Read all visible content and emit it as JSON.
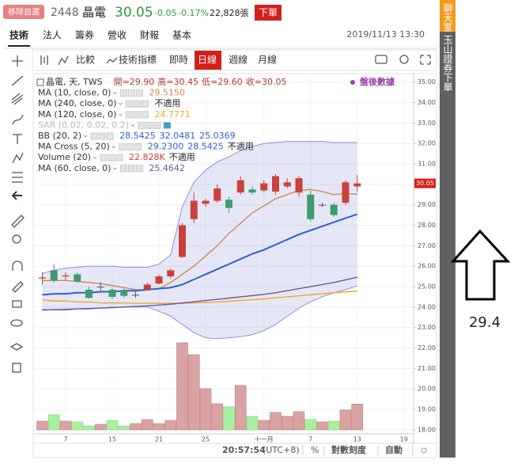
{
  "header": {
    "button": "移除自選",
    "code": "2448",
    "name": "晶電",
    "price": "30.05",
    "change": "-0.05",
    "pct": "-0.17%",
    "volume": "22,828張",
    "order": "下單"
  },
  "tabs": [
    "技術",
    "法人",
    "籌券",
    "營收",
    "財報",
    "基本"
  ],
  "datetime": "2019/11/13 13:30",
  "toolbar": {
    "items": [
      "比較",
      "技術指標",
      "即時",
      "日線",
      "週線",
      "月線"
    ],
    "active": 3
  },
  "side_tabs": [
    "聊天室",
    "玉山證券下單"
  ],
  "status": {
    "time": "20:57:54",
    "tz": "(UTC+8)",
    "pct": "%",
    "log": "對數刻度",
    "auto": "自動"
  },
  "annotation": "29.4",
  "chart_data": {
    "type": "candlestick",
    "title": "晶電, 天, TWS",
    "ohlc_labels": [
      "開=29.90",
      "高=30.45",
      "低=29.60",
      "收=30.05"
    ],
    "badge": "盤後數據",
    "categories": [
      null,
      null,
      "7",
      null,
      null,
      null,
      "15",
      null,
      null,
      null,
      "21",
      null,
      null,
      null,
      "25",
      null,
      null,
      null,
      null,
      "十一月",
      null,
      null,
      null,
      "7",
      null,
      null,
      null,
      "13",
      null,
      null,
      null,
      "19"
    ],
    "open": [
      25.4,
      25.8,
      25.5,
      25.6,
      24.85,
      25.0,
      24.85,
      24.8,
      24.6,
      24.85,
      25.15,
      25.5,
      26.45,
      28.3,
      29.05,
      29.2,
      29.25,
      29.6,
      29.75,
      29.7,
      29.65,
      29.9,
      29.6,
      29.5,
      29.0,
      29.0,
      29.1,
      29.9,
      null,
      null,
      null,
      null
    ],
    "high": [
      25.7,
      26.1,
      25.7,
      25.7,
      25.0,
      25.2,
      24.95,
      24.9,
      24.75,
      25.2,
      25.6,
      25.9,
      28.1,
      29.6,
      29.3,
      30.0,
      29.4,
      30.4,
      29.9,
      30.2,
      30.5,
      30.3,
      30.4,
      29.7,
      29.1,
      29.1,
      30.2,
      30.45,
      null,
      null,
      null,
      null
    ],
    "low": [
      25.1,
      25.2,
      25.3,
      25.2,
      24.4,
      24.8,
      24.4,
      24.45,
      24.45,
      24.8,
      25.1,
      25.4,
      26.4,
      28.1,
      28.9,
      29.1,
      28.6,
      29.5,
      29.5,
      29.6,
      29.5,
      29.8,
      29.4,
      28.2,
      28.9,
      28.4,
      29.0,
      29.6,
      null,
      null,
      null,
      null
    ],
    "close": [
      25.45,
      25.3,
      25.55,
      25.25,
      24.45,
      25.0,
      24.5,
      24.55,
      24.6,
      25.1,
      25.5,
      25.8,
      28.0,
      29.2,
      29.2,
      29.8,
      28.85,
      30.2,
      29.6,
      30.05,
      30.4,
      30.1,
      30.3,
      28.3,
      29.0,
      28.5,
      30.1,
      30.05,
      null,
      null,
      null,
      null
    ],
    "up_color": "#c9413a",
    "down_color": "#3f9a6e",
    "indicators": [
      {
        "name": "MA (10, close, 0)",
        "labels": [
          "29.5150"
        ],
        "color": "#d08a4c",
        "values": [
          25.3,
          25.3,
          25.3,
          25.25,
          25.2,
          25.15,
          25.05,
          24.95,
          24.85,
          24.85,
          24.9,
          25.2,
          25.6,
          26.0,
          26.5,
          27.0,
          27.6,
          28.1,
          28.6,
          28.95,
          29.3,
          29.5,
          29.7,
          29.75,
          29.65,
          29.5,
          29.55,
          29.515,
          null,
          null,
          null,
          null
        ]
      },
      {
        "name": "MA (240, close, 0)",
        "labels": [
          "不適用"
        ],
        "color": "#333333"
      },
      {
        "name": "MA (120, close, 0)",
        "labels": [
          "24.7771"
        ],
        "color": "#f2a52a",
        "values": [
          24.35,
          24.3,
          24.3,
          24.25,
          24.25,
          24.2,
          24.2,
          24.2,
          24.18,
          24.18,
          24.18,
          24.18,
          24.18,
          24.2,
          24.22,
          24.25,
          24.28,
          24.32,
          24.36,
          24.4,
          24.45,
          24.5,
          24.55,
          24.6,
          24.65,
          24.7,
          24.74,
          24.7771,
          null,
          null,
          null,
          null
        ]
      },
      {
        "name": "SAR (0.02, 0.02, 0.2)",
        "labels": [],
        "color": "#bbbbbb"
      },
      {
        "name": "BB (20, 2)",
        "labels": [
          "28.5425",
          "32.0481",
          "25.0369"
        ],
        "color": "#2f5fcf",
        "band_color": "#8a92dc",
        "values": [
          24.6,
          24.65,
          24.65,
          24.7,
          24.7,
          24.75,
          24.75,
          24.8,
          24.8,
          24.85,
          24.9,
          24.95,
          25.1,
          25.35,
          25.6,
          25.85,
          26.1,
          26.35,
          26.6,
          26.8,
          27.05,
          27.3,
          27.55,
          27.75,
          27.95,
          28.15,
          28.35,
          28.5425,
          null,
          null,
          null,
          null
        ],
        "upper": [
          25.65,
          25.8,
          25.9,
          25.95,
          26.0,
          26.0,
          26.0,
          25.95,
          25.95,
          25.95,
          26.1,
          26.55,
          28.9,
          30.1,
          30.7,
          31.1,
          31.35,
          31.65,
          31.85,
          32.0,
          32.05,
          32.1,
          32.1,
          32.1,
          32.1,
          32.05,
          32.05,
          32.0481,
          null,
          null,
          null,
          null
        ],
        "lower": [
          23.9,
          23.85,
          23.85,
          23.9,
          23.9,
          23.95,
          24.0,
          24.0,
          24.0,
          24.0,
          23.8,
          23.55,
          23.15,
          22.75,
          22.5,
          22.45,
          22.5,
          22.55,
          22.65,
          22.85,
          23.15,
          23.55,
          23.95,
          24.25,
          24.5,
          24.7,
          24.85,
          25.0369,
          null,
          null,
          null,
          null
        ]
      },
      {
        "name": "MA Cross (5, 20)",
        "labels": [
          "29.2300",
          "28.5425",
          "不適用"
        ],
        "color": "#2f5fcf"
      },
      {
        "name": "Volume (20)",
        "labels": [
          "22.828K",
          "不適用"
        ],
        "color": "#c9413a",
        "volume": [
          7.7,
          13.3,
          7.7,
          7,
          3.5,
          4.9,
          8.4,
          3.5,
          5.6,
          9.1,
          5.6,
          8.4,
          76.9,
          66.4,
          36.4,
          23.1,
          20.3,
          39.2,
          11.9,
          8.4,
          15.4,
          11.9,
          16.1,
          9.1,
          7,
          7.7,
          17.5,
          22.828,
          null,
          null,
          null,
          null
        ]
      },
      {
        "name": "MA (60, close, 0)",
        "labels": [
          "25.4642"
        ],
        "color": "#6a5a9a",
        "values": [
          23.85,
          23.87,
          23.89,
          23.91,
          23.93,
          23.95,
          23.97,
          24.0,
          24.03,
          24.06,
          24.1,
          24.14,
          24.2,
          24.26,
          24.32,
          24.38,
          24.44,
          24.5,
          24.56,
          24.62,
          24.7,
          24.8,
          24.9,
          25.0,
          25.1,
          25.2,
          25.33,
          25.4642,
          null,
          null,
          null,
          null
        ]
      }
    ],
    "ylim": [
      17.8,
      35.3
    ],
    "yticks": [
      {
        "value": 18,
        "label": "18.00"
      },
      {
        "value": 19,
        "label": "19.00"
      },
      {
        "value": 20,
        "label": "20.00"
      },
      {
        "value": 21,
        "label": "21.00"
      },
      {
        "value": 22,
        "label": "22.00"
      },
      {
        "value": 23,
        "label": "23.00"
      },
      {
        "value": 24,
        "label": "24.00"
      },
      {
        "value": 25,
        "label": "25.00"
      },
      {
        "value": 26,
        "label": "26.00"
      },
      {
        "value": 27,
        "label": "27.00"
      },
      {
        "value": 28,
        "label": "28.00"
      },
      {
        "value": 29,
        "label": "29.00"
      },
      {
        "value": 30,
        "label": "30.00"
      },
      {
        "value": 31,
        "label": "31.00"
      },
      {
        "value": 32,
        "label": "32.00"
      },
      {
        "value": 33,
        "label": "33.00"
      },
      {
        "value": 34,
        "label": "34.00"
      },
      {
        "value": 35,
        "label": "35.00"
      }
    ],
    "last_close": 30.05,
    "grid": true
  }
}
